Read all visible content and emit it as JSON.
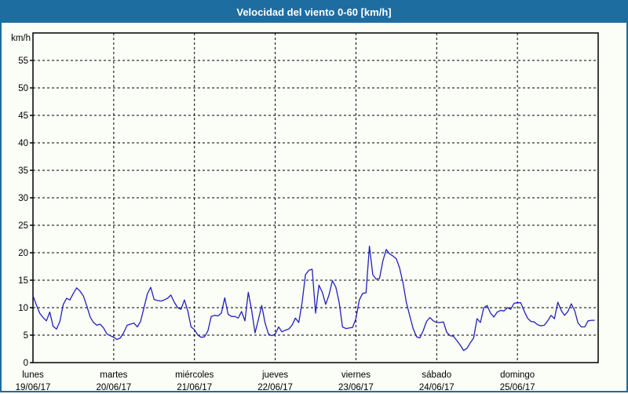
{
  "window": {
    "title": "Velocidad del viento 0-60 [km/h]"
  },
  "colors": {
    "title_bar_bg": "#1e6da1",
    "frame_border": "#1e6da1",
    "title_text": "#ffffff",
    "series_line": "#2121bd",
    "grid": "#000000",
    "background": "#fbfdf7"
  },
  "chart_data": {
    "type": "line",
    "title": "Velocidad del viento 0-60 [km/h]",
    "ylabel": "km/h",
    "xlabel": "",
    "ylim": [
      0,
      60
    ],
    "yticks": [
      0,
      5,
      10,
      15,
      20,
      25,
      30,
      35,
      40,
      45,
      50,
      55
    ],
    "grid": true,
    "legend_position": "none",
    "samples_per_day": 24,
    "days": [
      {
        "name": "lunes",
        "date": "19/06/17",
        "values": [
          12.2,
          10.5,
          9.0,
          8.2,
          7.6,
          9.2,
          6.6,
          6.1,
          7.5,
          10.6,
          11.7,
          11.4,
          12.6,
          13.6,
          13.0,
          12.1,
          10.3,
          8.3,
          7.3,
          6.8,
          7.0,
          6.3,
          5.2,
          4.9
        ]
      },
      {
        "name": "martes",
        "date": "20/06/17",
        "values": [
          4.6,
          4.2,
          4.5,
          5.5,
          6.8,
          7.0,
          7.2,
          6.5,
          7.5,
          10.0,
          12.5,
          13.7,
          11.5,
          11.3,
          11.2,
          11.4,
          11.7,
          12.3,
          11.0,
          10.0,
          9.7,
          11.4,
          9.5,
          6.5
        ]
      },
      {
        "name": "miércoles",
        "date": "21/06/17",
        "values": [
          6.0,
          5.0,
          4.6,
          4.7,
          5.8,
          8.4,
          8.6,
          8.5,
          9.0,
          11.8,
          8.8,
          8.4,
          8.4,
          8.1,
          9.3,
          7.6,
          12.8,
          9.5,
          5.4,
          7.8,
          10.4,
          7.2,
          5.2,
          4.9
        ]
      },
      {
        "name": "jueves",
        "date": "22/06/17",
        "values": [
          5.2,
          6.5,
          5.6,
          5.9,
          6.1,
          6.8,
          8.1,
          7.3,
          11.0,
          16.0,
          16.8,
          17.0,
          9.0,
          14.1,
          12.8,
          10.6,
          12.3,
          14.9,
          13.8,
          11.0,
          6.5,
          6.2,
          6.3,
          6.4
        ]
      },
      {
        "name": "viernes",
        "date": "23/06/17",
        "values": [
          8.0,
          11.4,
          12.6,
          12.7,
          21.2,
          16.0,
          15.2,
          15.3,
          18.5,
          20.6,
          19.8,
          19.4,
          18.9,
          17.2,
          14.5,
          10.9,
          8.5,
          6.2,
          4.7,
          4.5,
          5.8,
          7.5,
          8.2,
          7.6
        ]
      },
      {
        "name": "sábado",
        "date": "24/06/17",
        "values": [
          7.3,
          7.3,
          7.4,
          5.5,
          4.9,
          4.8,
          4.0,
          3.2,
          2.2,
          2.6,
          3.6,
          4.5,
          8.0,
          7.3,
          10.0,
          10.4,
          9.0,
          8.3,
          9.2,
          9.5,
          9.4,
          10.0,
          9.7,
          10.8
        ]
      },
      {
        "name": "domingo",
        "date": "25/06/17",
        "values": [
          10.9,
          10.9,
          9.4,
          8.1,
          7.5,
          7.4,
          6.9,
          6.7,
          6.8,
          7.6,
          8.6,
          8.0,
          11.0,
          9.5,
          8.6,
          9.3,
          10.7,
          9.5,
          7.2,
          6.5,
          6.5,
          7.6,
          7.7,
          7.7
        ]
      }
    ]
  }
}
